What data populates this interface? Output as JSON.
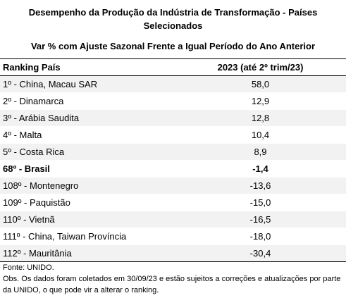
{
  "header": {
    "title": "Desempenho da Produção da Indústria de Transformação - Países Selecionados",
    "subtitle": "Var % com Ajuste Sazonal Frente a Igual Período do Ano Anterior"
  },
  "table": {
    "columns": [
      "Ranking País",
      "2023 (até 2º trim/23)"
    ],
    "rows": [
      [
        "1º - China, Macau SAR",
        "58,0"
      ],
      [
        "2º - Dinamarca",
        "12,9"
      ],
      [
        "3º - Arábia Saudita",
        "12,8"
      ],
      [
        "4º - Malta",
        "10,4"
      ],
      [
        "5º - Costa Rica",
        "8,9"
      ],
      [
        "68º - Brasil",
        "-1,4"
      ],
      [
        "108º - Montenegro",
        "-13,6"
      ],
      [
        "109º - Paquistão",
        "-15,0"
      ],
      [
        "110º - Vietnã",
        "-16,5"
      ],
      [
        "111º - China, Taiwan Província",
        "-18,0"
      ],
      [
        "112º - Mauritânia",
        "-30,4"
      ]
    ]
  },
  "footer": {
    "source": "Fonte: UNIDO.",
    "note": "Obs. Os dados foram coletados em 30/09/23 e estão sujeitos a correções e atualizações por parte da UNIDO, o que pode vir a alterar o ranking."
  }
}
